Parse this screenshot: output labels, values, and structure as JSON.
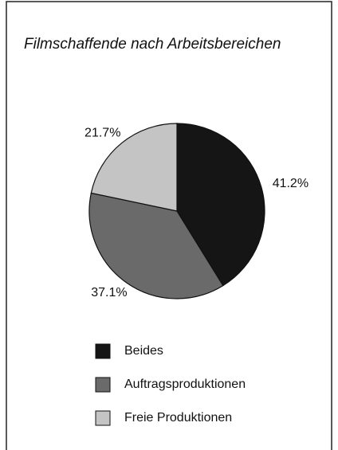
{
  "chart_data": {
    "type": "pie",
    "title": "Filmschaffende nach Arbeitsbereichen",
    "categories": [
      "Beides",
      "Auftragsproduktionen",
      "Freie Produktionen"
    ],
    "values": [
      41.2,
      37.1,
      21.7
    ],
    "value_labels": [
      "41.2%",
      "37.1%",
      "21.7%"
    ],
    "colors": [
      "#151515",
      "#6a6a6a",
      "#c4c4c4"
    ],
    "legend": "bottom"
  }
}
